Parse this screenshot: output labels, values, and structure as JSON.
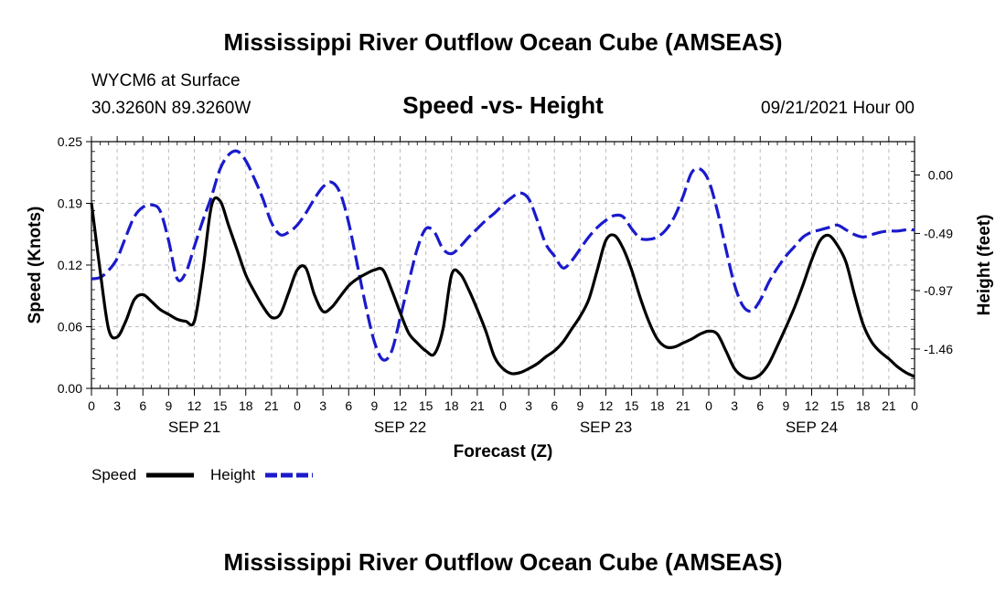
{
  "chart_data": {
    "type": "line",
    "title": "Mississippi River Outflow Ocean Cube (AMSEAS)",
    "footer_title": "Mississippi River Outflow Ocean Cube (AMSEAS)",
    "subtitle": "Speed -vs- Height",
    "station": "WYCM6 at Surface",
    "location": "30.3260N  89.3260W",
    "run_time": "09/21/2021 Hour 00",
    "xlabel": "Forecast (Z)",
    "ylabel_left": "Speed (Knots)",
    "ylabel_right": "Height (feet)",
    "x_ticks": [
      "0",
      "3",
      "6",
      "9",
      "12",
      "15",
      "18",
      "21",
      "0",
      "3",
      "6",
      "9",
      "12",
      "15",
      "18",
      "21",
      "0",
      "3",
      "6",
      "9",
      "12",
      "15",
      "18",
      "21",
      "0",
      "3",
      "6",
      "9",
      "12",
      "15",
      "18",
      "21",
      "0"
    ],
    "dates": [
      {
        "label": "SEP 21",
        "hour": 12
      },
      {
        "label": "SEP 22",
        "hour": 36
      },
      {
        "label": "SEP 23",
        "hour": 60
      },
      {
        "label": "SEP 24",
        "hour": 84
      }
    ],
    "x_range": [
      0,
      96
    ],
    "y_left": {
      "range": [
        0,
        0.25
      ],
      "ticks": [
        "0.00",
        "0.06",
        "0.12",
        "0.19",
        "0.25"
      ],
      "tick_values": [
        0,
        0.0625,
        0.125,
        0.1875,
        0.25
      ]
    },
    "y_right": {
      "range": [
        -1.79,
        0.28
      ],
      "ticks": [
        "0.00",
        "-0.49",
        "-0.97",
        "-1.46"
      ],
      "tick_values": [
        0,
        -0.49,
        -0.97,
        -1.46
      ]
    },
    "grid": true,
    "legend_position": "bottom-left",
    "series": [
      {
        "name": "Speed",
        "label": "Speed",
        "axis": "left",
        "color": "#000000",
        "dash": "solid",
        "x": [
          0,
          1,
          2,
          3,
          4,
          5,
          6,
          7,
          8,
          9,
          10,
          11,
          12,
          13,
          14,
          15,
          16,
          17,
          18,
          19,
          20,
          21,
          22,
          23,
          24,
          25,
          26,
          27,
          28,
          29,
          30,
          31,
          32,
          33,
          34,
          35,
          36,
          37,
          38,
          39,
          40,
          41,
          42,
          43,
          44,
          45,
          46,
          47,
          48,
          49,
          50,
          51,
          52,
          53,
          54,
          55,
          56,
          57,
          58,
          59,
          60,
          61,
          62,
          63,
          64,
          65,
          66,
          67,
          68,
          69,
          70,
          71,
          72,
          73,
          74,
          75,
          76,
          77,
          78,
          79,
          80,
          81,
          82,
          83,
          84,
          85,
          86,
          87,
          88,
          89,
          90,
          91,
          92,
          93,
          94,
          95,
          96
        ],
        "values": [
          0.188,
          0.12,
          0.06,
          0.052,
          0.068,
          0.09,
          0.095,
          0.088,
          0.08,
          0.075,
          0.07,
          0.068,
          0.068,
          0.12,
          0.185,
          0.19,
          0.165,
          0.14,
          0.115,
          0.098,
          0.083,
          0.072,
          0.075,
          0.097,
          0.12,
          0.122,
          0.095,
          0.078,
          0.082,
          0.093,
          0.104,
          0.111,
          0.116,
          0.12,
          0.12,
          0.1,
          0.077,
          0.056,
          0.046,
          0.038,
          0.035,
          0.06,
          0.115,
          0.116,
          0.1,
          0.08,
          0.058,
          0.032,
          0.02,
          0.015,
          0.016,
          0.02,
          0.025,
          0.032,
          0.038,
          0.047,
          0.06,
          0.073,
          0.09,
          0.12,
          0.15,
          0.155,
          0.142,
          0.12,
          0.092,
          0.068,
          0.05,
          0.042,
          0.042,
          0.046,
          0.05,
          0.055,
          0.058,
          0.055,
          0.038,
          0.02,
          0.012,
          0.01,
          0.014,
          0.025,
          0.043,
          0.062,
          0.082,
          0.105,
          0.13,
          0.15,
          0.155,
          0.145,
          0.128,
          0.095,
          0.065,
          0.047,
          0.037,
          0.03,
          0.022,
          0.016,
          0.012
        ]
      },
      {
        "name": "Height",
        "label": "Height",
        "axis": "right",
        "color": "#1a1acc",
        "dash": "dashed",
        "x": [
          0,
          1,
          2,
          3,
          4,
          5,
          6,
          7,
          8,
          9,
          10,
          11,
          12,
          13,
          14,
          15,
          16,
          17,
          18,
          19,
          20,
          21,
          22,
          23,
          24,
          25,
          26,
          27,
          28,
          29,
          30,
          31,
          32,
          33,
          34,
          35,
          36,
          37,
          38,
          39,
          40,
          41,
          42,
          43,
          44,
          45,
          46,
          47,
          48,
          49,
          50,
          51,
          52,
          53,
          54,
          55,
          56,
          57,
          58,
          59,
          60,
          61,
          62,
          63,
          64,
          65,
          66,
          67,
          68,
          69,
          70,
          71,
          72,
          73,
          74,
          75,
          76,
          77,
          78,
          79,
          80,
          81,
          82,
          83,
          84,
          85,
          86,
          87,
          88,
          89,
          90,
          91,
          92,
          93,
          94,
          95,
          96
        ],
        "values": [
          -0.87,
          -0.86,
          -0.8,
          -0.7,
          -0.52,
          -0.35,
          -0.27,
          -0.25,
          -0.3,
          -0.55,
          -0.87,
          -0.82,
          -0.6,
          -0.38,
          -0.18,
          0.05,
          0.17,
          0.2,
          0.12,
          -0.03,
          -0.2,
          -0.4,
          -0.5,
          -0.48,
          -0.42,
          -0.32,
          -0.2,
          -0.1,
          -0.06,
          -0.15,
          -0.4,
          -0.75,
          -1.1,
          -1.4,
          -1.55,
          -1.48,
          -1.2,
          -0.9,
          -0.62,
          -0.45,
          -0.48,
          -0.62,
          -0.66,
          -0.6,
          -0.52,
          -0.45,
          -0.38,
          -0.32,
          -0.25,
          -0.19,
          -0.15,
          -0.2,
          -0.38,
          -0.58,
          -0.68,
          -0.78,
          -0.72,
          -0.62,
          -0.52,
          -0.44,
          -0.38,
          -0.34,
          -0.35,
          -0.45,
          -0.53,
          -0.54,
          -0.52,
          -0.46,
          -0.35,
          -0.18,
          0.02,
          0.05,
          -0.05,
          -0.3,
          -0.62,
          -0.92,
          -1.1,
          -1.14,
          -1.05,
          -0.9,
          -0.78,
          -0.68,
          -0.6,
          -0.52,
          -0.48,
          -0.46,
          -0.44,
          -0.42,
          -0.46,
          -0.5,
          -0.52,
          -0.5,
          -0.48,
          -0.47,
          -0.47,
          -0.46,
          -0.46
        ]
      }
    ]
  }
}
